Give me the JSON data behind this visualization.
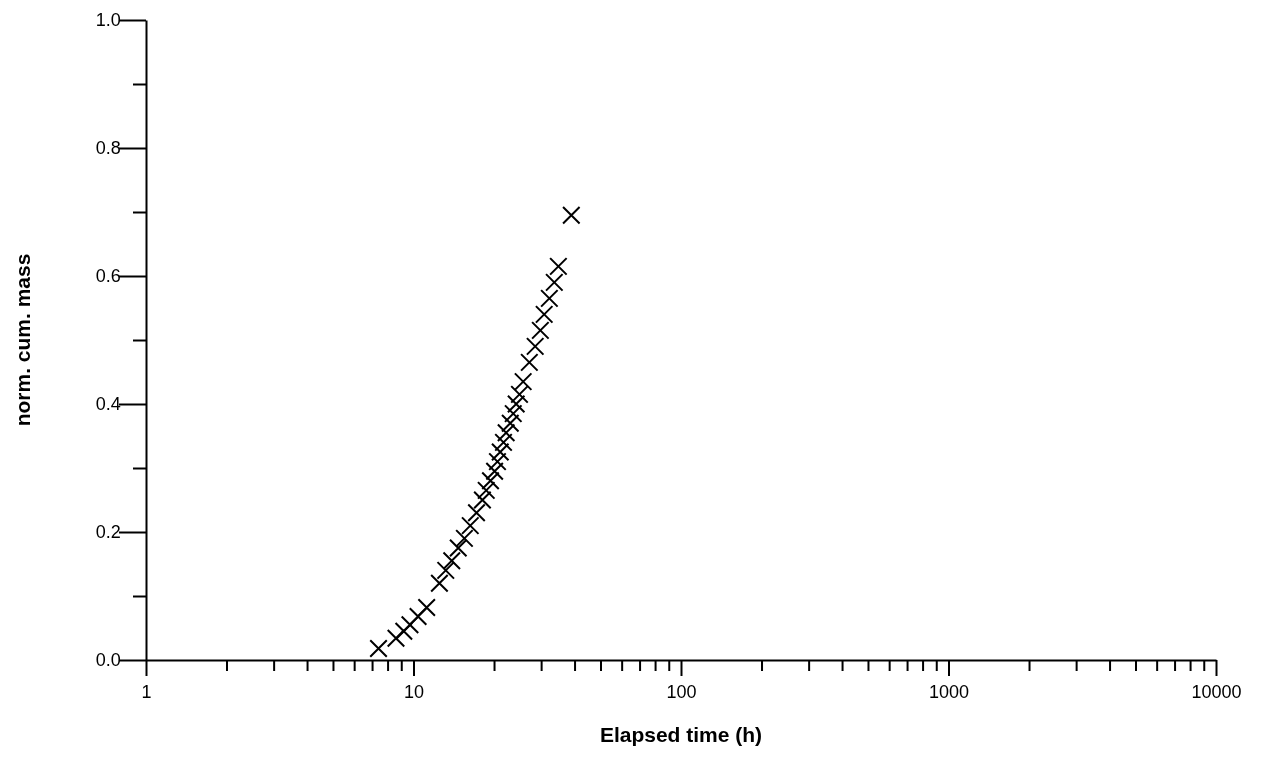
{
  "chart_data": {
    "type": "scatter",
    "xlabel": "Elapsed time (h)",
    "ylabel": "norm. cum. mass",
    "log": "x",
    "marker": "cross",
    "grid": false,
    "xlim": [
      1,
      10000
    ],
    "ylim": [
      0,
      1
    ],
    "xticks": [
      1,
      {
        "value": 2,
        "label": null
      },
      {
        "value": 3,
        "label": null
      },
      {
        "value": 4,
        "label": null
      },
      {
        "value": 5,
        "label": null
      },
      {
        "value": 6,
        "label": null
      },
      {
        "value": 7,
        "label": null
      },
      {
        "value": 8,
        "label": null
      },
      {
        "value": 9,
        "label": null
      },
      10,
      {
        "value": 20,
        "label": null
      },
      {
        "value": 30,
        "label": null
      },
      {
        "value": 40,
        "label": null
      },
      {
        "value": 50,
        "label": null
      },
      {
        "value": 60,
        "label": null
      },
      {
        "value": 70,
        "label": null
      },
      {
        "value": 80,
        "label": null
      },
      {
        "value": 90,
        "label": null
      },
      100,
      {
        "value": 200,
        "label": null
      },
      {
        "value": 300,
        "label": null
      },
      {
        "value": 400,
        "label": null
      },
      {
        "value": 500,
        "label": null
      },
      {
        "value": 600,
        "label": null
      },
      {
        "value": 700,
        "label": null
      },
      {
        "value": 800,
        "label": null
      },
      {
        "value": 900,
        "label": null
      },
      1000,
      {
        "value": 2000,
        "label": null
      },
      {
        "value": 3000,
        "label": null
      },
      {
        "value": 4000,
        "label": null
      },
      {
        "value": 5000,
        "label": null
      },
      {
        "value": 6000,
        "label": null
      },
      {
        "value": 7000,
        "label": null
      },
      {
        "value": 8000,
        "label": null
      },
      {
        "value": 9000,
        "label": null
      },
      10000
    ],
    "yticks": [
      {
        "value": 0,
        "label": "0.0"
      },
      {
        "value": 0.1,
        "label": null
      },
      0.2,
      {
        "value": 0.3,
        "label": null
      },
      0.4,
      {
        "value": 0.5,
        "label": null
      },
      0.6,
      {
        "value": 0.7,
        "label": null
      },
      0.8,
      {
        "value": 0.9,
        "label": null
      },
      {
        "value": 1,
        "label": "1.0"
      }
    ],
    "series": [
      {
        "color": "#000000",
        "x": [
          7.4,
          8.6,
          9.2,
          9.7,
          10.4,
          11.2,
          12.5,
          13.2,
          13.9,
          14.7,
          15.5,
          16.3,
          17.2,
          18.1,
          18.7,
          19.4,
          20.1,
          20.6,
          21.1,
          21.7,
          22.2,
          23.0,
          23.6,
          24.2,
          24.9,
          25.7,
          27.1,
          28.5,
          29.8,
          30.8,
          32.2,
          33.6,
          34.8,
          38.9
        ],
        "values": [
          0.018,
          0.034,
          0.045,
          0.055,
          0.068,
          0.082,
          0.12,
          0.14,
          0.155,
          0.175,
          0.19,
          0.21,
          0.23,
          0.25,
          0.265,
          0.28,
          0.295,
          0.31,
          0.325,
          0.34,
          0.355,
          0.37,
          0.385,
          0.4,
          0.415,
          0.435,
          0.465,
          0.49,
          0.515,
          0.54,
          0.565,
          0.59,
          0.615,
          0.695
        ]
      }
    ]
  }
}
